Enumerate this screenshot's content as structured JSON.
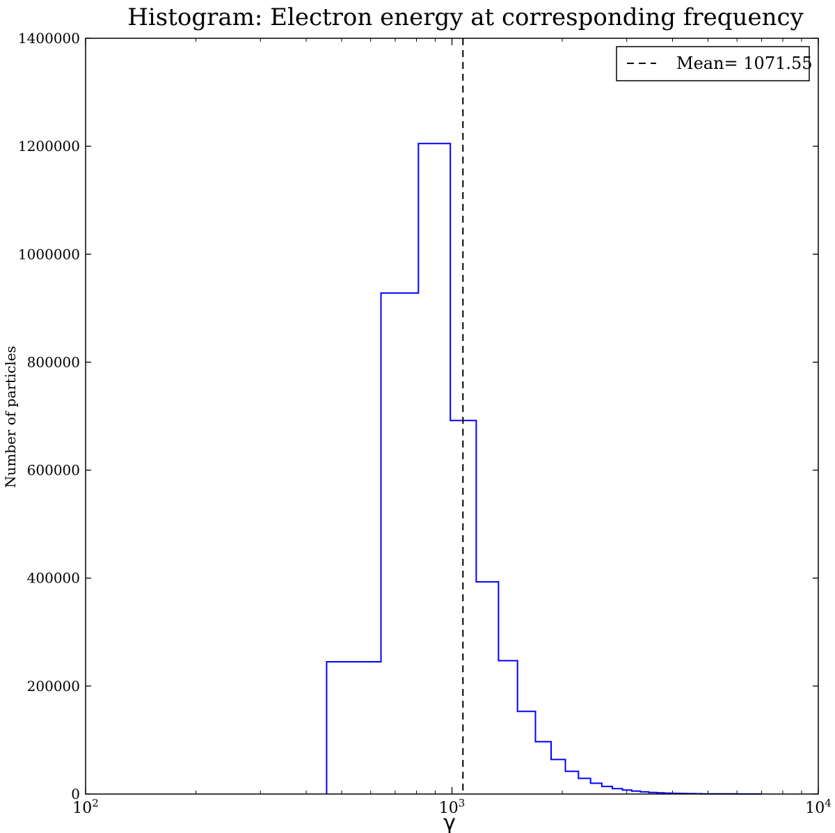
{
  "chart_data": {
    "type": "histogram",
    "title": "Histogram: Electron energy at corresponding frequency",
    "xlabel": "γ",
    "ylabel": "Number of particles",
    "x_scale": "log",
    "xlim": [
      100,
      10000
    ],
    "ylim": [
      0,
      1400000
    ],
    "x_ticks": [
      {
        "value": 100,
        "base": "10",
        "exp": "2"
      },
      {
        "value": 1000,
        "base": "10",
        "exp": "3"
      },
      {
        "value": 10000,
        "base": "10",
        "exp": "4"
      }
    ],
    "y_ticks": [
      0,
      200000,
      400000,
      600000,
      800000,
      1000000,
      1200000,
      1400000
    ],
    "y_tick_labels": [
      "0",
      "200000",
      "400000",
      "600000",
      "800000",
      "1000000",
      "1200000",
      "1400000"
    ],
    "grid": false,
    "histtype": "step",
    "color": "#0000ff",
    "bins": [
      {
        "x0": 455,
        "x1": 640,
        "count": 245000
      },
      {
        "x0": 640,
        "x1": 810,
        "count": 928000
      },
      {
        "x0": 810,
        "x1": 990,
        "count": 1205000
      },
      {
        "x0": 990,
        "x1": 1165,
        "count": 692000
      },
      {
        "x0": 1165,
        "x1": 1340,
        "count": 393000
      },
      {
        "x0": 1340,
        "x1": 1510,
        "count": 247000
      },
      {
        "x0": 1510,
        "x1": 1690,
        "count": 153000
      },
      {
        "x0": 1690,
        "x1": 1865,
        "count": 97000
      },
      {
        "x0": 1865,
        "x1": 2040,
        "count": 64000
      },
      {
        "x0": 2040,
        "x1": 2215,
        "count": 42000
      },
      {
        "x0": 2215,
        "x1": 2390,
        "count": 29000
      },
      {
        "x0": 2390,
        "x1": 2565,
        "count": 20000
      },
      {
        "x0": 2565,
        "x1": 2740,
        "count": 14000
      },
      {
        "x0": 2740,
        "x1": 2920,
        "count": 10000
      },
      {
        "x0": 2920,
        "x1": 3095,
        "count": 7500
      },
      {
        "x0": 3095,
        "x1": 3270,
        "count": 5500
      },
      {
        "x0": 3270,
        "x1": 3445,
        "count": 4000
      },
      {
        "x0": 3445,
        "x1": 3620,
        "count": 3000
      },
      {
        "x0": 3620,
        "x1": 3800,
        "count": 2200
      },
      {
        "x0": 3800,
        "x1": 4000,
        "count": 1700
      },
      {
        "x0": 4000,
        "x1": 4200,
        "count": 1300
      },
      {
        "x0": 4200,
        "x1": 4400,
        "count": 1000
      },
      {
        "x0": 4400,
        "x1": 4600,
        "count": 800
      },
      {
        "x0": 4600,
        "x1": 4800,
        "count": 600
      },
      {
        "x0": 4800,
        "x1": 5000,
        "count": 450
      },
      {
        "x0": 5000,
        "x1": 5400,
        "count": 350
      },
      {
        "x0": 5400,
        "x1": 6000,
        "count": 250
      },
      {
        "x0": 6000,
        "x1": 7000,
        "count": 150
      }
    ],
    "mean_line": {
      "x": 1071.55,
      "label": "Mean= 1071.55",
      "style": "dashed",
      "color": "#000000"
    },
    "legend": {
      "placement": "top-right",
      "entries": [
        "Mean= 1071.55"
      ]
    }
  }
}
